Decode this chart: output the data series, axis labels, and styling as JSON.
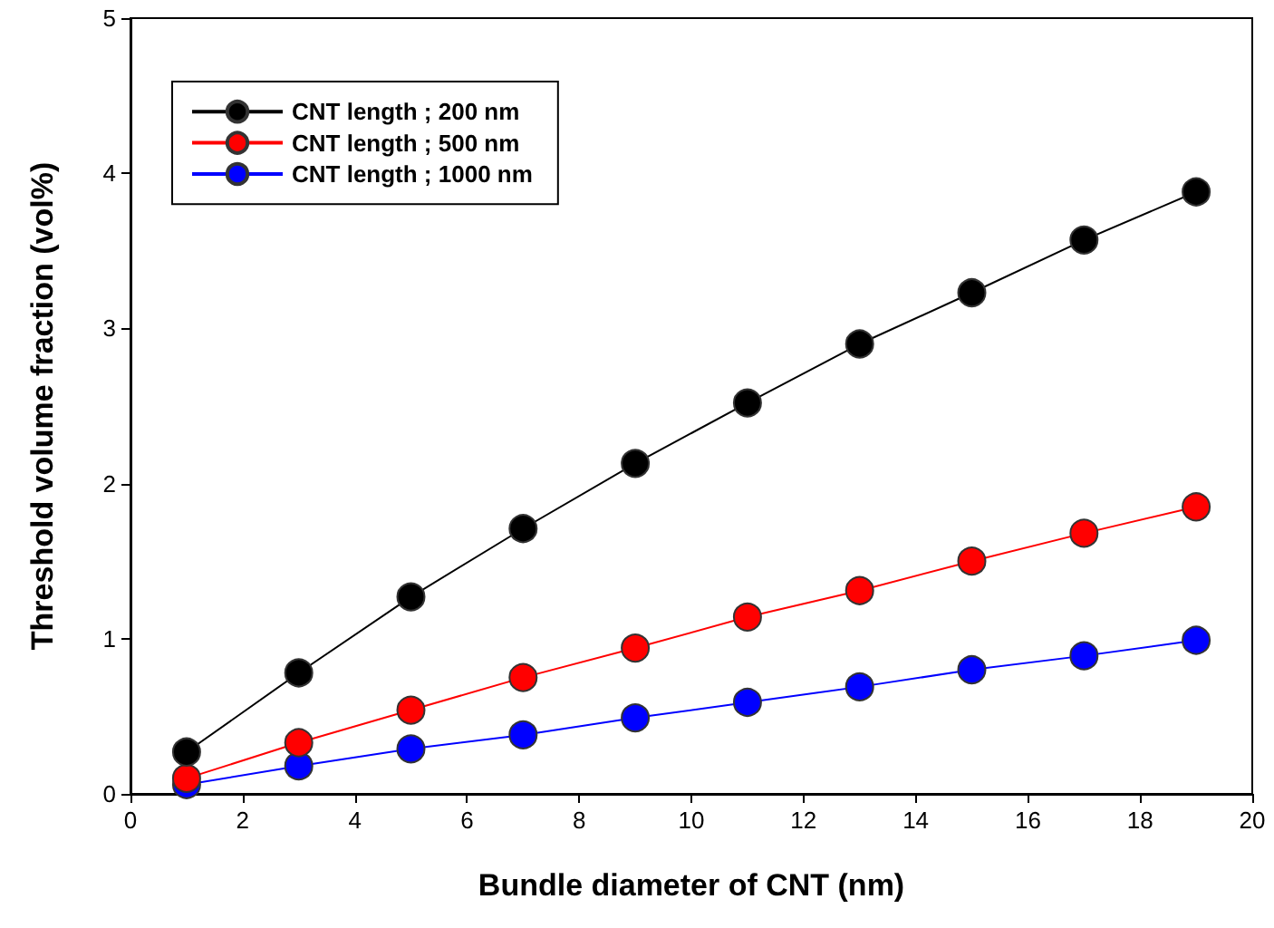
{
  "chart_data": {
    "type": "line",
    "xlabel": "Bundle diameter of CNT (nm)",
    "ylabel": "Threshold volume fraction (vol%)",
    "x": [
      1,
      3,
      5,
      7,
      9,
      11,
      13,
      15,
      17,
      19
    ],
    "series": [
      {
        "name": "CNT length ; 200 nm",
        "color": "#000000",
        "values": [
          0.27,
          0.78,
          1.27,
          1.71,
          2.13,
          2.52,
          2.9,
          3.23,
          3.57,
          3.88
        ]
      },
      {
        "name": "CNT length ; 500 nm",
        "color": "#ff0000",
        "values": [
          0.1,
          0.33,
          0.54,
          0.75,
          0.94,
          1.14,
          1.31,
          1.5,
          1.68,
          1.85
        ]
      },
      {
        "name": "CNT length ; 1000 nm",
        "color": "#0000ff",
        "values": [
          0.06,
          0.18,
          0.29,
          0.38,
          0.49,
          0.59,
          0.69,
          0.8,
          0.89,
          0.99
        ]
      }
    ],
    "xlim": [
      0,
      20
    ],
    "xticks": [
      0,
      2,
      4,
      6,
      8,
      10,
      12,
      14,
      16,
      18,
      20
    ],
    "ylim": [
      0,
      5
    ],
    "yticks": [
      0,
      1,
      2,
      3,
      4,
      5
    ],
    "grid": false,
    "legend": "top left",
    "marker": "circle",
    "line_style": "solid"
  }
}
